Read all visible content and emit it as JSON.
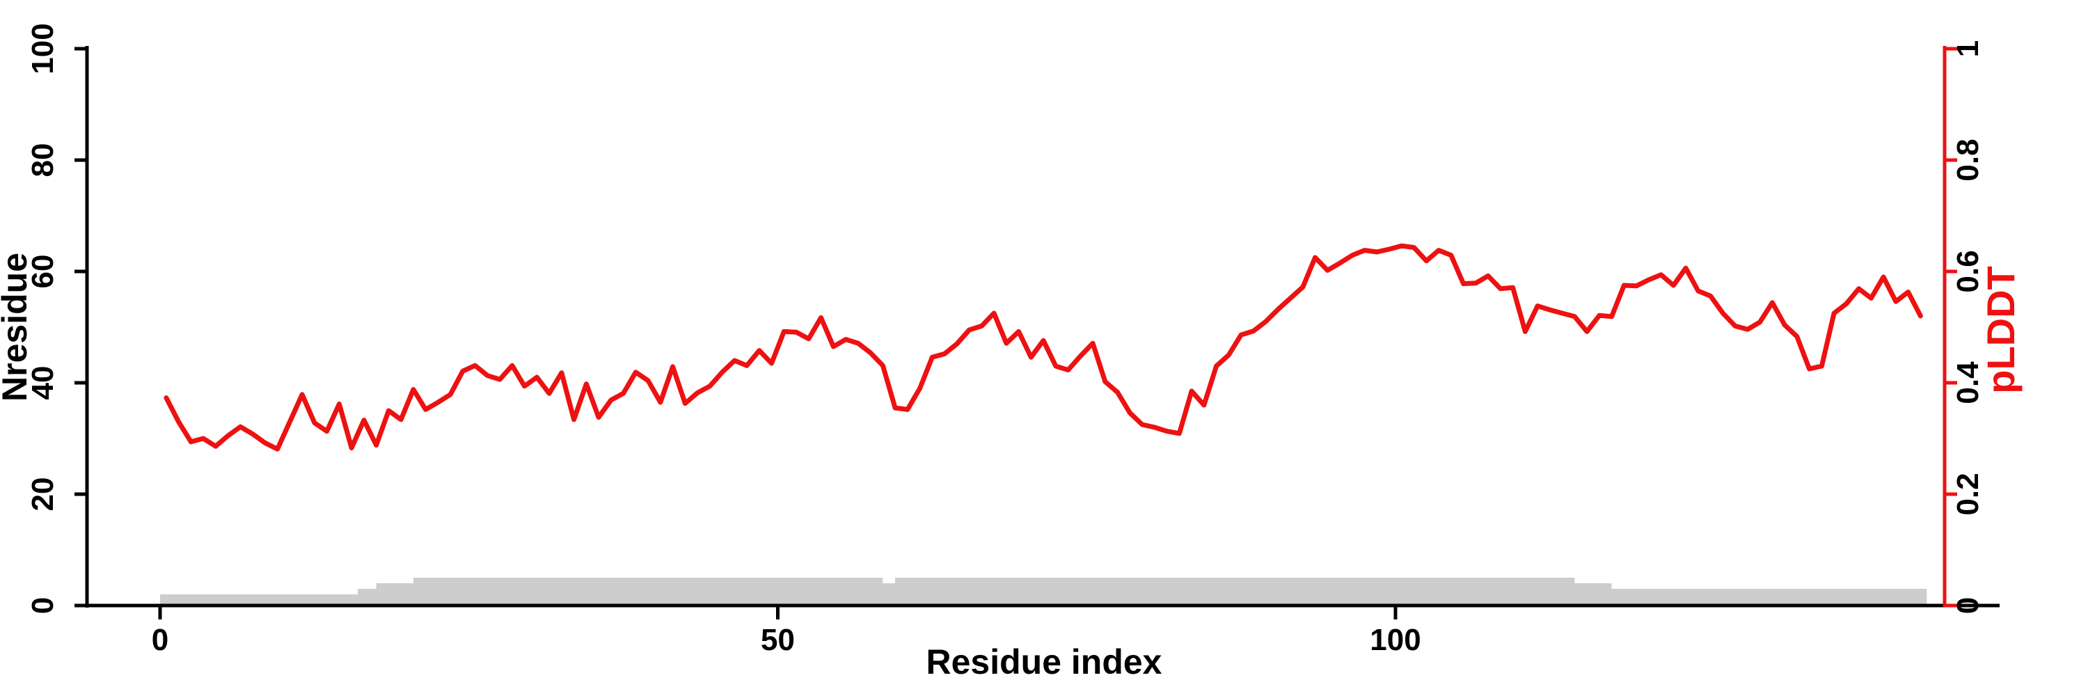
{
  "figure": {
    "background": "#ffffff",
    "accent_red": "#ee1111",
    "bar_gray": "#cdcdcd"
  },
  "chart_data": {
    "type": "line",
    "title": "",
    "xlabel": "Residue index",
    "grid": false,
    "legend": "none",
    "x_axis": {
      "ticks": [
        0,
        50,
        100
      ],
      "tick_labels": [
        "0",
        "50",
        "100"
      ],
      "range": [
        0,
        148
      ]
    },
    "left_axis": {
      "label": "Nresidue",
      "ticks": [
        0,
        20,
        40,
        60,
        80,
        100
      ],
      "tick_labels": [
        "0",
        "20",
        "40",
        "60",
        "80",
        "100"
      ],
      "range": [
        0,
        100
      ],
      "color": "#000000"
    },
    "right_axis": {
      "label": "pLDDT",
      "ticks": [
        0,
        0.2,
        0.4,
        0.6,
        0.8,
        1
      ],
      "tick_labels": [
        "0",
        "0.2",
        "0.4",
        "0.6",
        "0.8",
        "1"
      ],
      "range": [
        0,
        1
      ],
      "color": "#ee1111"
    },
    "series": [
      {
        "name": "pLDDT",
        "type": "line",
        "axis": "right",
        "color": "#ee1111",
        "x_start": 1,
        "x_end": 143,
        "values": [
          0.373,
          0.33,
          0.294,
          0.3,
          0.286,
          0.305,
          0.321,
          0.308,
          0.292,
          0.281,
          0.33,
          0.379,
          0.328,
          0.313,
          0.362,
          0.283,
          0.333,
          0.288,
          0.35,
          0.334,
          0.388,
          0.352,
          0.365,
          0.379,
          0.421,
          0.431,
          0.413,
          0.406,
          0.431,
          0.394,
          0.41,
          0.381,
          0.418,
          0.334,
          0.398,
          0.338,
          0.369,
          0.381,
          0.419,
          0.404,
          0.365,
          0.429,
          0.363,
          0.382,
          0.394,
          0.419,
          0.44,
          0.431,
          0.458,
          0.435,
          0.492,
          0.491,
          0.479,
          0.517,
          0.465,
          0.478,
          0.471,
          0.454,
          0.431,
          0.355,
          0.352,
          0.39,
          0.446,
          0.452,
          0.47,
          0.495,
          0.502,
          0.525,
          0.471,
          0.492,
          0.446,
          0.476,
          0.43,
          0.423,
          0.448,
          0.471,
          0.402,
          0.383,
          0.346,
          0.325,
          0.32,
          0.313,
          0.309,
          0.385,
          0.36,
          0.43,
          0.45,
          0.486,
          0.493,
          0.51,
          0.532,
          0.552,
          0.572,
          0.625,
          0.602,
          0.615,
          0.629,
          0.638,
          0.635,
          0.64,
          0.646,
          0.643,
          0.619,
          0.638,
          0.629,
          0.578,
          0.579,
          0.592,
          0.569,
          0.571,
          0.492,
          0.538,
          0.531,
          0.525,
          0.519,
          0.492,
          0.521,
          0.519,
          0.575,
          0.574,
          0.585,
          0.594,
          0.575,
          0.606,
          0.565,
          0.556,
          0.525,
          0.502,
          0.496,
          0.509,
          0.544,
          0.504,
          0.483,
          0.425,
          0.43,
          0.525,
          0.542,
          0.569,
          0.552,
          0.59,
          0.546,
          0.563,
          0.52
        ]
      },
      {
        "name": "Nresidue",
        "type": "step_area",
        "axis": "left",
        "color": "#cdcdcd",
        "steps": [
          {
            "from": 0,
            "to": 16,
            "value": 2
          },
          {
            "from": 16,
            "to": 17.5,
            "value": 3
          },
          {
            "from": 17.5,
            "to": 20.5,
            "value": 4
          },
          {
            "from": 20.5,
            "to": 58.5,
            "value": 5
          },
          {
            "from": 58.5,
            "to": 59.5,
            "value": 4
          },
          {
            "from": 59.5,
            "to": 114.5,
            "value": 5
          },
          {
            "from": 114.5,
            "to": 117.5,
            "value": 4
          },
          {
            "from": 117.5,
            "to": 143,
            "value": 3
          }
        ]
      }
    ]
  }
}
